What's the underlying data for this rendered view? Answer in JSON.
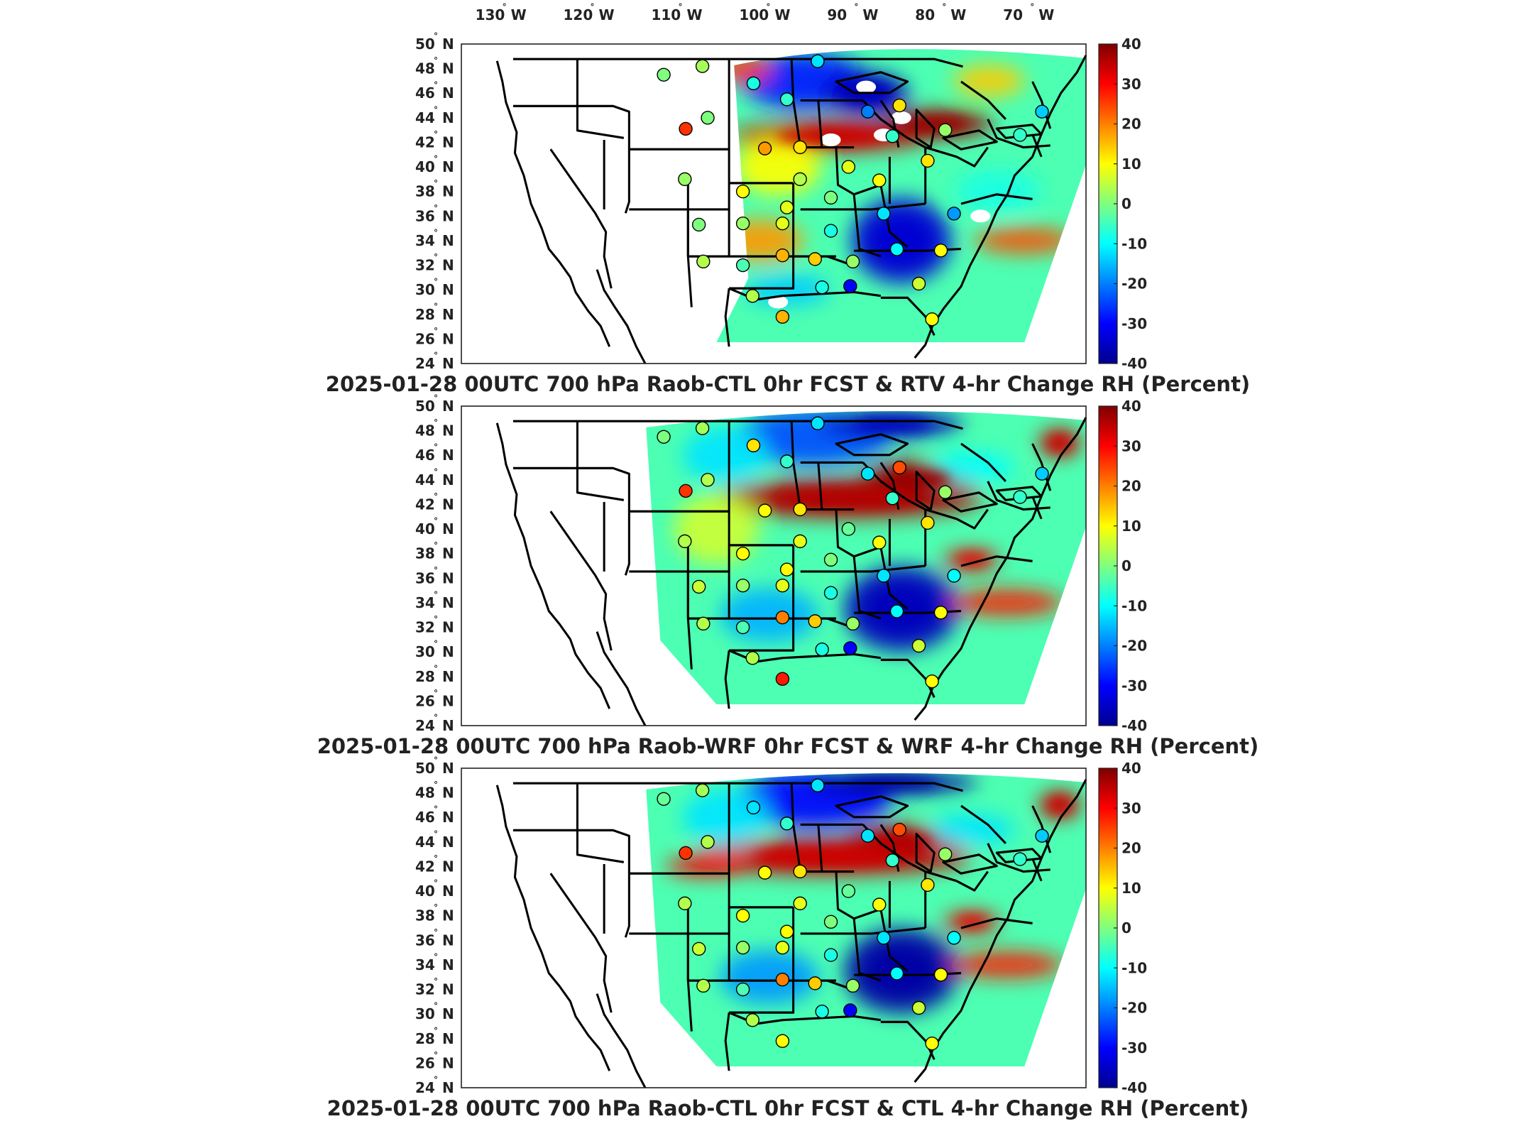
{
  "figure": {
    "lon_labels": [
      "130",
      "120",
      "110",
      "100",
      "90",
      "80",
      "70"
    ],
    "lon_hemi": "W",
    "lat_labels": [
      "50",
      "48",
      "46",
      "44",
      "42",
      "40",
      "38",
      "36",
      "34",
      "32",
      "30",
      "28",
      "26",
      "24"
    ],
    "lat_hemi": "N",
    "colorbar": {
      "ticks": [
        "40",
        "30",
        "20",
        "10",
        "0",
        "-10",
        "-20",
        "-30",
        "-40"
      ],
      "min": -40,
      "max": 40,
      "colormap": [
        "#00008f",
        "#0000ff",
        "#007fff",
        "#00ffff",
        "#7fff7f",
        "#ffff00",
        "#ff7f00",
        "#ff0000",
        "#7f0000"
      ]
    }
  },
  "panels": [
    {
      "title": "2025-01-28 00UTC 700 hPa Raob-CTL 0hr FCST & RTV 4-hr Change RH (Percent)",
      "field_west_lon": -103
    },
    {
      "title": "2025-01-28 00UTC 700 hPa Raob-WRF 0hr FCST & WRF 4-hr Change RH (Percent)",
      "field_west_lon": -113
    },
    {
      "title": "2025-01-28 00UTC 700 hPa Raob-CTL 0hr FCST & CTL 4-hr Change RH (Percent)",
      "field_west_lon": -113
    }
  ],
  "raob_sites": [
    {
      "lon": -111.0,
      "lat": 47.5
    },
    {
      "lon": -106.6,
      "lat": 48.2
    },
    {
      "lon": -100.8,
      "lat": 46.8
    },
    {
      "lon": -93.5,
      "lat": 48.6
    },
    {
      "lon": -97.0,
      "lat": 45.5
    },
    {
      "lon": -108.5,
      "lat": 43.1
    },
    {
      "lon": -106.0,
      "lat": 44.0
    },
    {
      "lon": -99.5,
      "lat": 41.5
    },
    {
      "lon": -95.5,
      "lat": 41.6
    },
    {
      "lon": -90.0,
      "lat": 40.0
    },
    {
      "lon": -84.2,
      "lat": 45.0
    },
    {
      "lon": -87.8,
      "lat": 44.5
    },
    {
      "lon": -79.0,
      "lat": 43.0
    },
    {
      "lon": -70.5,
      "lat": 42.6
    },
    {
      "lon": -68.0,
      "lat": 44.5
    },
    {
      "lon": -108.6,
      "lat": 39.0
    },
    {
      "lon": -102.0,
      "lat": 38.0
    },
    {
      "lon": -95.5,
      "lat": 39.0
    },
    {
      "lon": -92.0,
      "lat": 37.5
    },
    {
      "lon": -86.5,
      "lat": 38.9
    },
    {
      "lon": -81.0,
      "lat": 40.5
    },
    {
      "lon": -107.0,
      "lat": 35.3
    },
    {
      "lon": -102.0,
      "lat": 35.4
    },
    {
      "lon": -97.5,
      "lat": 35.4
    },
    {
      "lon": -97.0,
      "lat": 36.7
    },
    {
      "lon": -92.0,
      "lat": 34.8
    },
    {
      "lon": -86.0,
      "lat": 36.2
    },
    {
      "lon": -78.0,
      "lat": 36.2
    },
    {
      "lon": -106.5,
      "lat": 32.3
    },
    {
      "lon": -102.0,
      "lat": 32.0
    },
    {
      "lon": -97.5,
      "lat": 32.8
    },
    {
      "lon": -93.8,
      "lat": 32.5
    },
    {
      "lon": -89.5,
      "lat": 32.3
    },
    {
      "lon": -84.5,
      "lat": 33.3
    },
    {
      "lon": -79.5,
      "lat": 33.2
    },
    {
      "lon": -100.9,
      "lat": 29.5
    },
    {
      "lon": -97.5,
      "lat": 27.8
    },
    {
      "lon": -93.0,
      "lat": 30.2
    },
    {
      "lon": -89.8,
      "lat": 30.3
    },
    {
      "lon": -82.0,
      "lat": 30.5
    },
    {
      "lon": -80.5,
      "lat": 27.6
    },
    {
      "lon": -85.0,
      "lat": 42.5
    }
  ]
}
